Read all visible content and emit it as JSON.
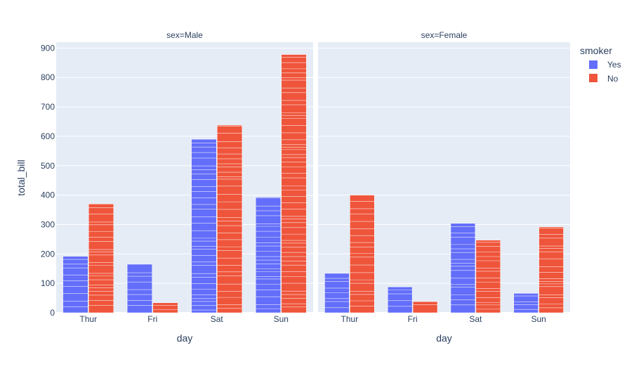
{
  "chart_data": {
    "type": "bar",
    "stacked_segments": true,
    "barmode": "group",
    "ylabel": "total_bill",
    "xlabel": "day",
    "ylim": [
      0,
      920
    ],
    "yticks": [
      0,
      100,
      200,
      300,
      400,
      500,
      600,
      700,
      800,
      900
    ],
    "grid": true,
    "categories": [
      "Thur",
      "Fri",
      "Sat",
      "Sun"
    ],
    "legend": {
      "title": "smoker",
      "position": "top-right",
      "entries": [
        {
          "name": "Yes",
          "color": "#636efa"
        },
        {
          "name": "No",
          "color": "#ef553b"
        }
      ]
    },
    "panels": [
      {
        "title": "sex=Male",
        "series": [
          {
            "name": "Yes",
            "color": "#636efa",
            "values": [
              192,
              165,
              590,
              393
            ]
          },
          {
            "name": "No",
            "color": "#ef553b",
            "values": [
              370,
              34,
              638,
              878
            ]
          }
        ]
      },
      {
        "title": "sex=Female",
        "series": [
          {
            "name": "Yes",
            "color": "#636efa",
            "values": [
              134,
              88,
              304,
              66
            ]
          },
          {
            "name": "No",
            "color": "#ef553b",
            "values": [
              400,
              38,
              247,
              292
            ]
          }
        ]
      }
    ]
  }
}
